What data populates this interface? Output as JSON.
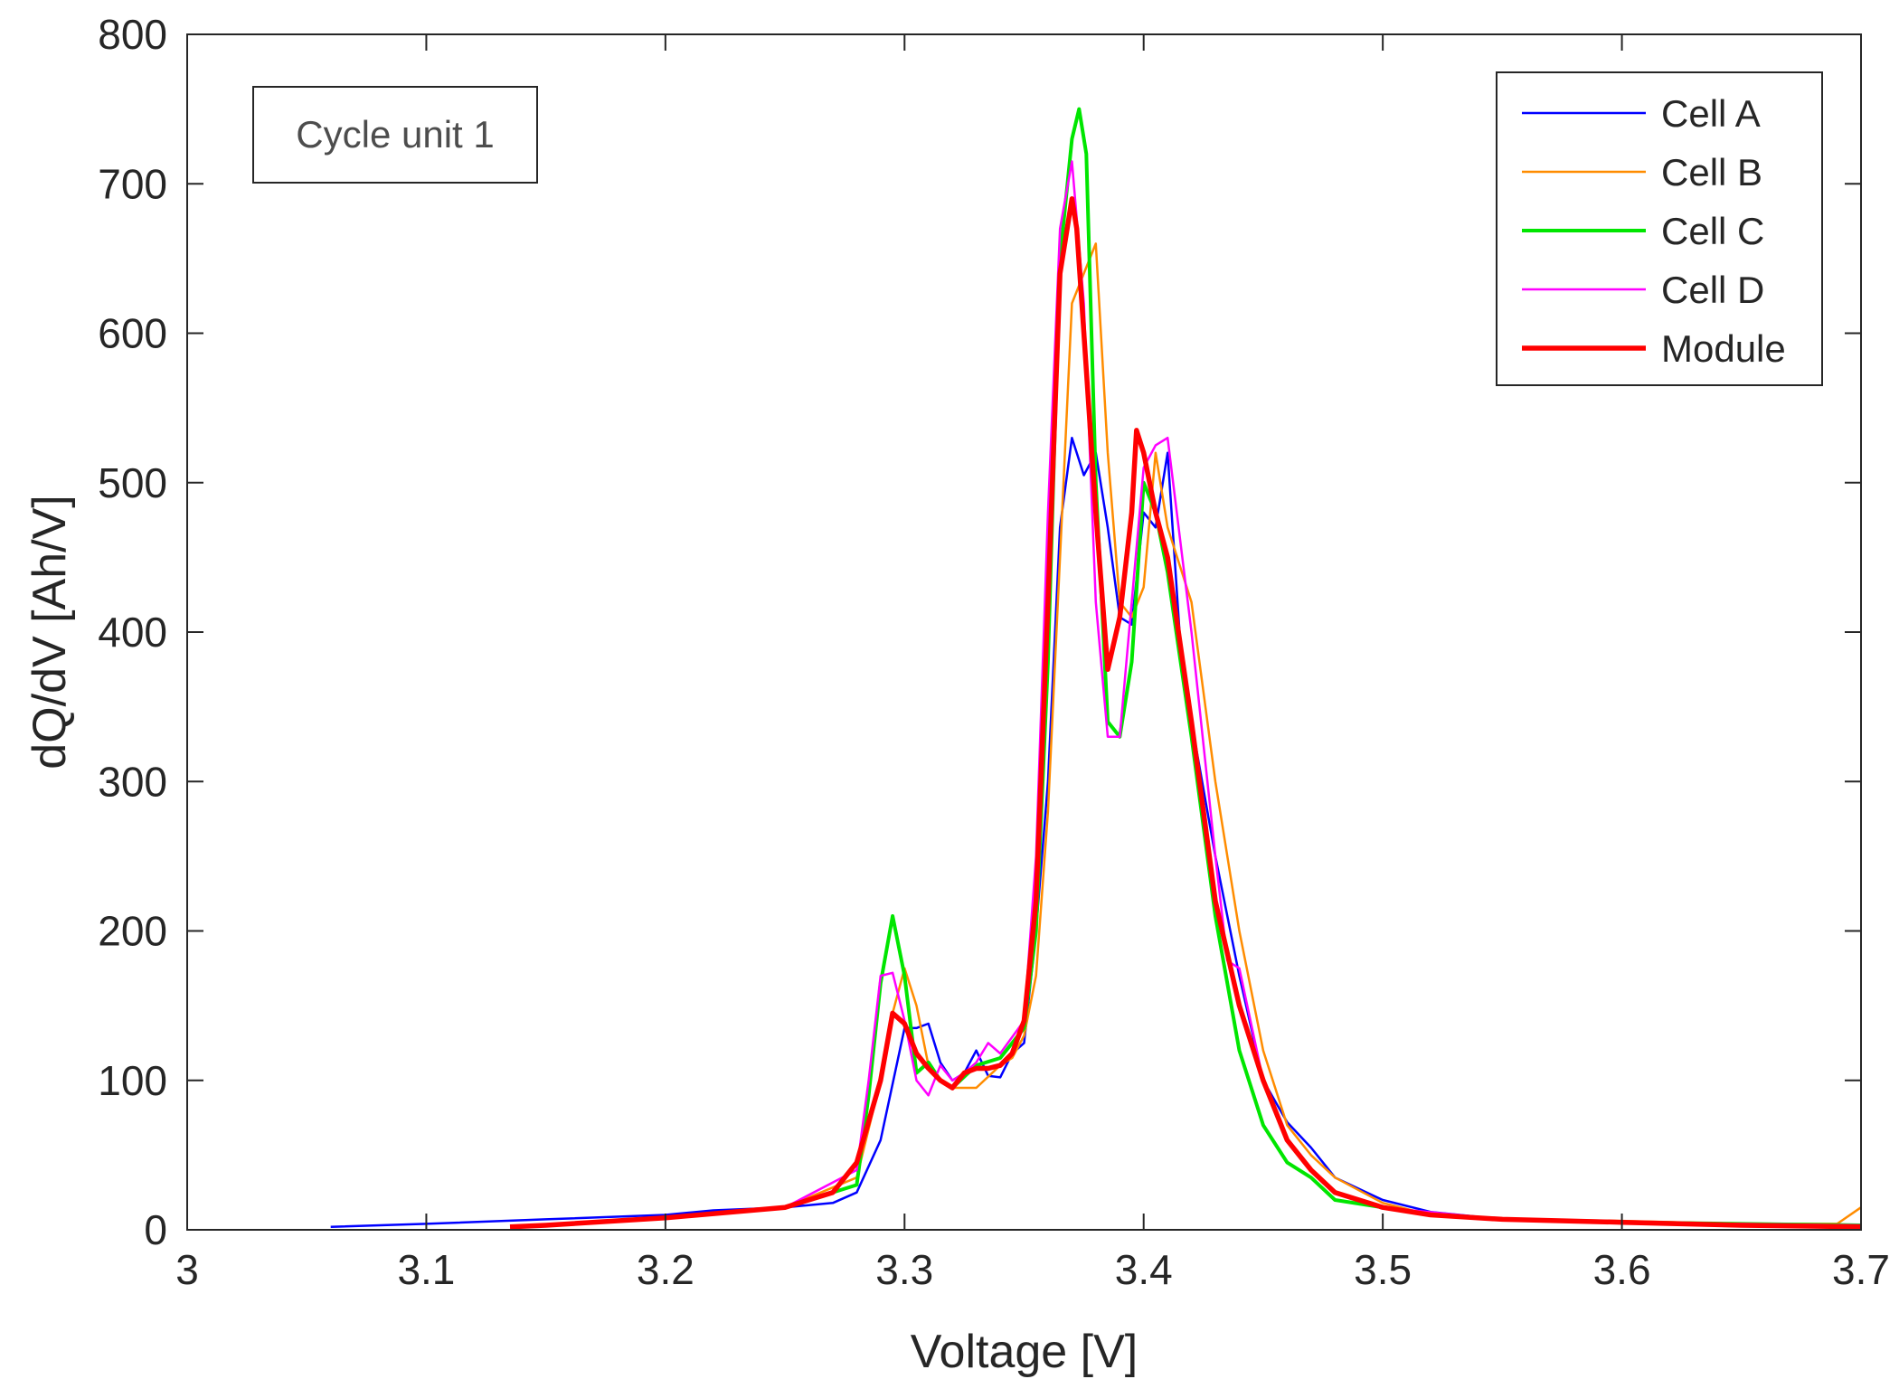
{
  "chart_data": {
    "type": "line",
    "title": "",
    "annotation": "Cycle unit 1",
    "xlabel": "Voltage [V]",
    "ylabel": "dQ/dV [Ah/V]",
    "xlim": [
      3.0,
      3.7
    ],
    "ylim": [
      0,
      800
    ],
    "xticks": [
      3.0,
      3.1,
      3.2,
      3.3,
      3.4,
      3.5,
      3.6,
      3.7
    ],
    "xtick_labels": [
      "3",
      "3.1",
      "3.2",
      "3.3",
      "3.4",
      "3.5",
      "3.6",
      "3.7"
    ],
    "yticks": [
      0,
      100,
      200,
      300,
      400,
      500,
      600,
      700,
      800
    ],
    "ytick_labels": [
      "0",
      "100",
      "200",
      "300",
      "400",
      "500",
      "600",
      "700",
      "800"
    ],
    "grid": false,
    "legend_position": "top-right",
    "series": [
      {
        "name": "Cell A",
        "color": "#0000ff",
        "width": "thin",
        "x": [
          3.06,
          3.1,
          3.15,
          3.2,
          3.22,
          3.25,
          3.27,
          3.28,
          3.29,
          3.3,
          3.305,
          3.31,
          3.315,
          3.32,
          3.325,
          3.33,
          3.335,
          3.34,
          3.345,
          3.35,
          3.355,
          3.36,
          3.365,
          3.37,
          3.375,
          3.38,
          3.385,
          3.39,
          3.395,
          3.4,
          3.405,
          3.41,
          3.415,
          3.42,
          3.43,
          3.44,
          3.45,
          3.46,
          3.47,
          3.48,
          3.5,
          3.52,
          3.55,
          3.6,
          3.65,
          3.7
        ],
        "y": [
          2,
          4,
          7,
          10,
          13,
          15,
          18,
          25,
          60,
          135,
          135,
          138,
          112,
          100,
          105,
          120,
          103,
          102,
          118,
          125,
          200,
          300,
          470,
          530,
          505,
          520,
          470,
          410,
          405,
          480,
          470,
          520,
          400,
          340,
          250,
          170,
          100,
          72,
          55,
          35,
          20,
          12,
          7,
          5,
          3,
          2
        ]
      },
      {
        "name": "Cell B",
        "color": "#ff8c00",
        "width": "thin",
        "x": [
          3.15,
          3.2,
          3.25,
          3.28,
          3.29,
          3.295,
          3.3,
          3.305,
          3.31,
          3.315,
          3.32,
          3.33,
          3.34,
          3.345,
          3.35,
          3.355,
          3.36,
          3.365,
          3.37,
          3.375,
          3.38,
          3.385,
          3.39,
          3.395,
          3.4,
          3.405,
          3.41,
          3.42,
          3.43,
          3.44,
          3.45,
          3.46,
          3.47,
          3.48,
          3.5,
          3.52,
          3.55,
          3.6,
          3.65,
          3.69,
          3.7
        ],
        "y": [
          3,
          8,
          15,
          35,
          100,
          145,
          175,
          150,
          110,
          100,
          95,
          95,
          110,
          115,
          130,
          170,
          280,
          450,
          620,
          640,
          660,
          520,
          420,
          410,
          430,
          520,
          470,
          420,
          300,
          200,
          120,
          70,
          50,
          35,
          18,
          10,
          7,
          6,
          4,
          4,
          15
        ]
      },
      {
        "name": "Cell C",
        "color": "#00e600",
        "width": "medium",
        "x": [
          3.15,
          3.2,
          3.25,
          3.28,
          3.285,
          3.29,
          3.295,
          3.3,
          3.305,
          3.31,
          3.315,
          3.32,
          3.33,
          3.34,
          3.35,
          3.355,
          3.36,
          3.365,
          3.37,
          3.373,
          3.376,
          3.38,
          3.385,
          3.39,
          3.395,
          3.4,
          3.405,
          3.41,
          3.42,
          3.43,
          3.44,
          3.45,
          3.46,
          3.47,
          3.48,
          3.5,
          3.52,
          3.55,
          3.6,
          3.65,
          3.7
        ],
        "y": [
          3,
          8,
          15,
          30,
          90,
          165,
          210,
          170,
          105,
          112,
          100,
          95,
          110,
          115,
          135,
          200,
          380,
          650,
          730,
          750,
          720,
          500,
          340,
          330,
          380,
          500,
          480,
          440,
          330,
          210,
          120,
          70,
          45,
          35,
          20,
          15,
          10,
          7,
          5,
          4,
          3
        ]
      },
      {
        "name": "Cell D",
        "color": "#ff00ff",
        "width": "thin",
        "x": [
          3.15,
          3.2,
          3.25,
          3.28,
          3.285,
          3.29,
          3.295,
          3.3,
          3.305,
          3.31,
          3.315,
          3.32,
          3.325,
          3.33,
          3.335,
          3.34,
          3.35,
          3.355,
          3.36,
          3.365,
          3.37,
          3.375,
          3.38,
          3.385,
          3.39,
          3.395,
          3.4,
          3.405,
          3.41,
          3.42,
          3.43,
          3.435,
          3.44,
          3.45,
          3.46,
          3.47,
          3.48,
          3.5,
          3.55,
          3.6,
          3.65,
          3.7
        ],
        "y": [
          3,
          8,
          15,
          40,
          100,
          170,
          172,
          140,
          100,
          90,
          110,
          100,
          105,
          112,
          125,
          118,
          140,
          250,
          480,
          670,
          715,
          620,
          420,
          330,
          330,
          420,
          510,
          525,
          530,
          400,
          250,
          180,
          175,
          100,
          60,
          40,
          25,
          15,
          7,
          5,
          4,
          3
        ]
      },
      {
        "name": "Module",
        "color": "#ff0000",
        "width": "thick",
        "x": [
          3.135,
          3.15,
          3.2,
          3.25,
          3.27,
          3.28,
          3.29,
          3.295,
          3.3,
          3.305,
          3.31,
          3.315,
          3.32,
          3.325,
          3.33,
          3.335,
          3.34,
          3.345,
          3.35,
          3.355,
          3.36,
          3.365,
          3.37,
          3.372,
          3.375,
          3.38,
          3.385,
          3.39,
          3.395,
          3.397,
          3.4,
          3.405,
          3.41,
          3.42,
          3.43,
          3.44,
          3.45,
          3.46,
          3.47,
          3.48,
          3.5,
          3.52,
          3.55,
          3.6,
          3.65,
          3.7
        ],
        "y": [
          2,
          3,
          8,
          15,
          25,
          45,
          100,
          145,
          138,
          118,
          108,
          100,
          95,
          105,
          108,
          108,
          110,
          118,
          140,
          220,
          420,
          640,
          690,
          670,
          600,
          480,
          375,
          410,
          480,
          535,
          520,
          480,
          450,
          340,
          220,
          150,
          100,
          60,
          40,
          25,
          15,
          10,
          7,
          5,
          3,
          2
        ]
      }
    ]
  }
}
